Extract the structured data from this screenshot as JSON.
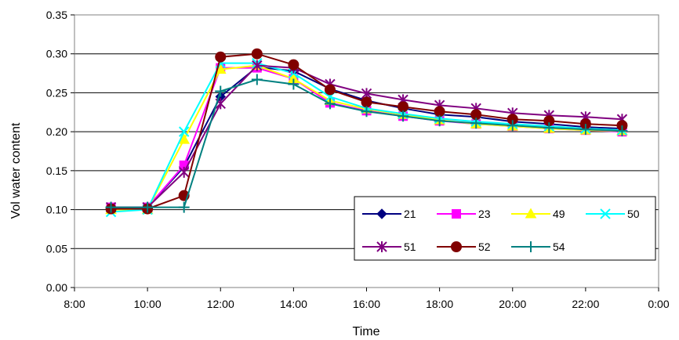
{
  "chart_data": {
    "type": "line",
    "xlabel": "Time",
    "ylabel": "Vol water content",
    "xlim": [
      8,
      24
    ],
    "ylim": [
      0,
      0.35
    ],
    "x_ticks": [
      {
        "value": 8,
        "label": "8:00"
      },
      {
        "value": 10,
        "label": "10:00"
      },
      {
        "value": 12,
        "label": "12:00"
      },
      {
        "value": 14,
        "label": "14:00"
      },
      {
        "value": 16,
        "label": "16:00"
      },
      {
        "value": 18,
        "label": "18:00"
      },
      {
        "value": 20,
        "label": "20:00"
      },
      {
        "value": 22,
        "label": "22:00"
      },
      {
        "value": 24,
        "label": "0:00"
      }
    ],
    "y_ticks": [
      {
        "value": 0,
        "label": "0.00"
      },
      {
        "value": 0.05,
        "label": "0.05"
      },
      {
        "value": 0.1,
        "label": "0.10"
      },
      {
        "value": 0.15,
        "label": "0.15"
      },
      {
        "value": 0.2,
        "label": "0.20"
      },
      {
        "value": 0.25,
        "label": "0.25"
      },
      {
        "value": 0.3,
        "label": "0.30"
      },
      {
        "value": 0.35,
        "label": "0.35"
      }
    ],
    "grid": "horizontal",
    "legend_position": "bottom-right",
    "x": [
      9,
      10,
      11,
      12,
      13,
      14,
      15,
      16,
      17,
      18,
      19,
      20,
      21,
      22,
      23
    ],
    "series": [
      {
        "name": "21",
        "color": "#000080",
        "marker": "diamond",
        "values": [
          0.103,
          0.103,
          0.155,
          0.245,
          0.283,
          0.278,
          0.255,
          0.24,
          0.23,
          0.222,
          0.219,
          0.213,
          0.21,
          0.206,
          0.204
        ]
      },
      {
        "name": "23",
        "color": "#ff00ff",
        "marker": "square",
        "values": [
          0.103,
          0.103,
          0.157,
          0.282,
          0.282,
          0.268,
          0.237,
          0.227,
          0.22,
          0.214,
          0.21,
          0.207,
          0.204,
          0.202,
          0.2
        ]
      },
      {
        "name": "49",
        "color": "#ffff00",
        "marker": "triangle",
        "values": [
          0.1,
          0.1,
          0.19,
          0.28,
          0.285,
          0.268,
          0.24,
          0.229,
          0.222,
          0.215,
          0.21,
          0.207,
          0.204,
          0.202,
          0.201
        ]
      },
      {
        "name": "50",
        "color": "#00ffff",
        "marker": "x",
        "values": [
          0.097,
          0.1,
          0.2,
          0.288,
          0.288,
          0.275,
          0.245,
          0.23,
          0.223,
          0.217,
          0.213,
          0.21,
          0.207,
          0.204,
          0.202
        ]
      },
      {
        "name": "51",
        "color": "#800080",
        "marker": "star",
        "values": [
          0.103,
          0.103,
          0.148,
          0.236,
          0.285,
          0.282,
          0.261,
          0.249,
          0.241,
          0.234,
          0.23,
          0.224,
          0.221,
          0.219,
          0.216
        ]
      },
      {
        "name": "52",
        "color": "#800000",
        "marker": "circle",
        "values": [
          0.101,
          0.101,
          0.118,
          0.296,
          0.3,
          0.286,
          0.254,
          0.238,
          0.232,
          0.226,
          0.222,
          0.216,
          0.214,
          0.21,
          0.208
        ]
      },
      {
        "name": "54",
        "color": "#008080",
        "marker": "plus",
        "values": [
          0.103,
          0.103,
          0.103,
          0.252,
          0.267,
          0.261,
          0.236,
          0.226,
          0.22,
          0.214,
          0.211,
          0.208,
          0.205,
          0.203,
          0.201
        ]
      }
    ]
  }
}
